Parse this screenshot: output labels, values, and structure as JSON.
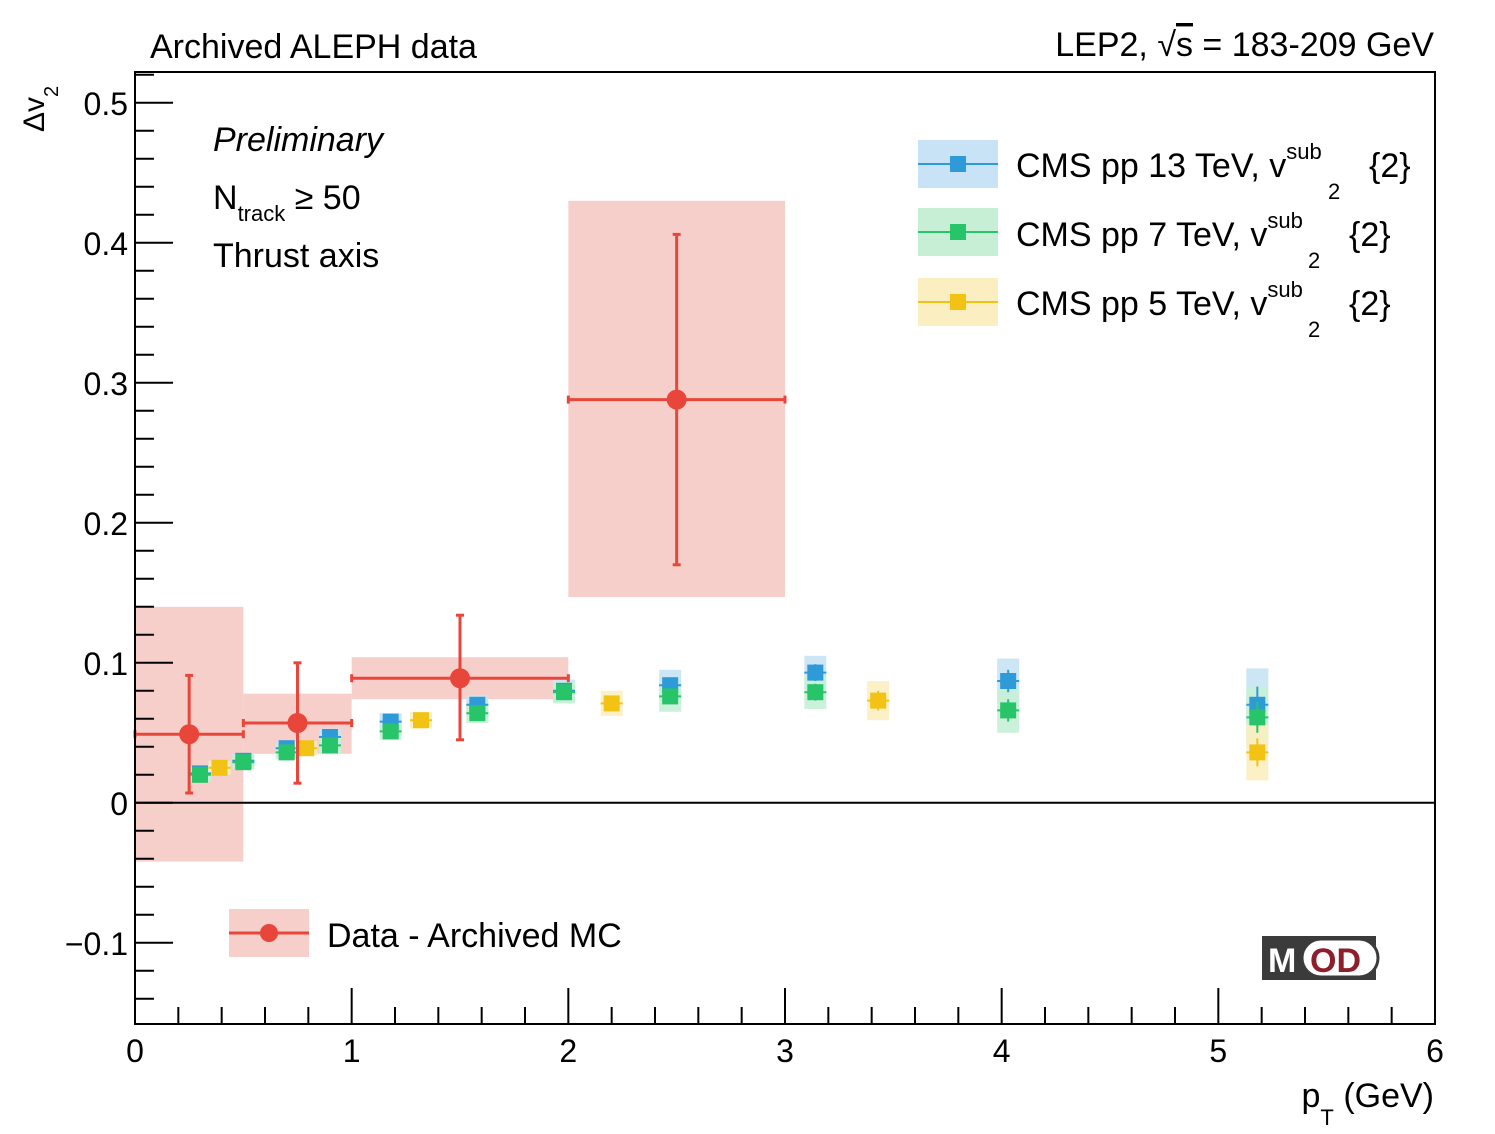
{
  "colors": {
    "data": "#e8463b",
    "data_band": "#f7cfca",
    "cms13": "#2f9ad8",
    "cms13_band": "#c7e3f5",
    "cms7": "#27c46a",
    "cms7_band": "#c6efd6",
    "cms5": "#f2c314",
    "cms5_band": "#fbeec0",
    "logo_bg": "#3b3b3b",
    "logo_accent": "#8c1f2b"
  },
  "chart_data": {
    "type": "scatter",
    "title_left": "Archived ALEPH data",
    "title_right_prefix": "LEP2, ",
    "title_right_sqrt": "s",
    "title_right_suffix": " = 183-209 GeV",
    "xlabel_main": "p",
    "xlabel_sub": "T",
    "xlabel_unit": " (GeV)",
    "ylabel_main": "Δv",
    "ylabel_sub": "2",
    "xlim": [
      0,
      6
    ],
    "ylim": [
      -0.158,
      0.522
    ],
    "x_ticks": [
      {
        "value": 0,
        "label": "0"
      },
      {
        "value": 1,
        "label": "1"
      },
      {
        "value": 2,
        "label": "2"
      },
      {
        "value": 3,
        "label": "3"
      },
      {
        "value": 4,
        "label": "4"
      },
      {
        "value": 5,
        "label": "5"
      },
      {
        "value": 6,
        "label": "6"
      }
    ],
    "y_ticks": [
      {
        "value": -0.1,
        "label": "−0.1"
      },
      {
        "value": 0,
        "label": "0"
      },
      {
        "value": 0.1,
        "label": "0.1"
      },
      {
        "value": 0.2,
        "label": "0.2"
      },
      {
        "value": 0.3,
        "label": "0.3"
      },
      {
        "value": 0.4,
        "label": "0.4"
      },
      {
        "value": 0.5,
        "label": "0.5"
      }
    ],
    "annotations": {
      "preliminary": "Preliminary",
      "ntrack_main": "N",
      "ntrack_sub": "track",
      "ntrack_rest": " ≥ 50",
      "axis": "Thrust axis"
    },
    "series": [
      {
        "name": "Data - Archived MC",
        "key": "data",
        "points": [
          {
            "x": 0.25,
            "xlo": 0.0,
            "xhi": 0.5,
            "y": 0.049,
            "ylo": 0.007,
            "yhi": 0.091,
            "syslo": -0.042,
            "syshi": 0.14
          },
          {
            "x": 0.75,
            "xlo": 0.5,
            "xhi": 1.0,
            "y": 0.057,
            "ylo": 0.014,
            "yhi": 0.1,
            "syslo": 0.035,
            "syshi": 0.078
          },
          {
            "x": 1.5,
            "xlo": 1.0,
            "xhi": 2.0,
            "y": 0.089,
            "ylo": 0.045,
            "yhi": 0.134,
            "syslo": 0.074,
            "syshi": 0.104
          },
          {
            "x": 2.5,
            "xlo": 2.0,
            "xhi": 3.0,
            "y": 0.288,
            "ylo": 0.17,
            "yhi": 0.406,
            "syslo": 0.147,
            "syshi": 0.43
          }
        ]
      },
      {
        "name": "CMS pp 13 TeV, v",
        "sup": "sub",
        "sub": "2",
        "suffix": "{2}",
        "key": "cms13",
        "points": [
          {
            "x": 0.3,
            "y": 0.021,
            "err": 0.005
          },
          {
            "x": 0.5,
            "y": 0.03,
            "err": 0.005
          },
          {
            "x": 0.7,
            "y": 0.039,
            "err": 0.005
          },
          {
            "x": 0.9,
            "y": 0.047,
            "err": 0.006
          },
          {
            "x": 1.18,
            "y": 0.058,
            "err": 0.006
          },
          {
            "x": 1.58,
            "y": 0.07,
            "err": 0.007
          },
          {
            "x": 1.98,
            "y": 0.08,
            "err": 0.008
          },
          {
            "x": 2.47,
            "y": 0.084,
            "err": 0.011
          },
          {
            "x": 3.14,
            "y": 0.093,
            "err": 0.012
          },
          {
            "x": 4.03,
            "y": 0.087,
            "err": 0.016
          },
          {
            "x": 5.18,
            "y": 0.07,
            "err": 0.026
          }
        ]
      },
      {
        "name": "CMS pp 7 TeV, v",
        "sup": "sub",
        "sub": "2",
        "suffix": "{2}",
        "key": "cms7",
        "points": [
          {
            "x": 0.3,
            "y": 0.02,
            "err": 0.005
          },
          {
            "x": 0.5,
            "y": 0.029,
            "err": 0.005
          },
          {
            "x": 0.7,
            "y": 0.036,
            "err": 0.005
          },
          {
            "x": 0.9,
            "y": 0.041,
            "err": 0.006
          },
          {
            "x": 1.18,
            "y": 0.051,
            "err": 0.006
          },
          {
            "x": 1.58,
            "y": 0.064,
            "err": 0.007
          },
          {
            "x": 1.98,
            "y": 0.079,
            "err": 0.008
          },
          {
            "x": 2.47,
            "y": 0.076,
            "err": 0.011
          },
          {
            "x": 3.14,
            "y": 0.079,
            "err": 0.012
          },
          {
            "x": 4.03,
            "y": 0.066,
            "err": 0.016
          },
          {
            "x": 5.18,
            "y": 0.061,
            "err": 0.022
          }
        ]
      },
      {
        "name": "CMS pp 5 TeV, v",
        "sup": "sub",
        "sub": "2",
        "suffix": "{2}",
        "key": "cms5",
        "points": [
          {
            "x": 0.39,
            "y": 0.025,
            "err": 0.005
          },
          {
            "x": 0.79,
            "y": 0.039,
            "err": 0.005
          },
          {
            "x": 1.32,
            "y": 0.059,
            "err": 0.006
          },
          {
            "x": 2.2,
            "y": 0.071,
            "err": 0.009
          },
          {
            "x": 3.43,
            "y": 0.073,
            "err": 0.014
          },
          {
            "x": 5.18,
            "y": 0.036,
            "err": 0.02
          }
        ]
      }
    ]
  },
  "logo": {
    "m": "M",
    "od": "OD"
  }
}
